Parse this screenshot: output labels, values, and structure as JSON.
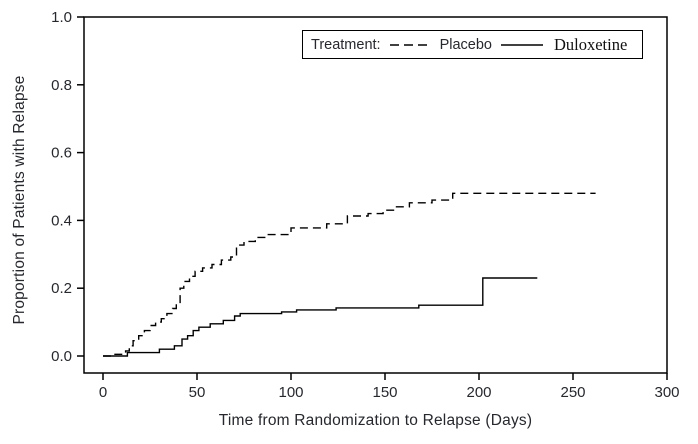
{
  "page": {
    "background_color": "#ffffff",
    "text_color": "#26282d",
    "line_color": "#000000"
  },
  "chart_data": {
    "type": "line",
    "subtype": "step-survival",
    "title": "",
    "xlabel": "Time from Randomization to Relapse (Days)",
    "ylabel": "Proportion of Patients with Relapse",
    "xlim": [
      0,
      300
    ],
    "ylim": [
      0.0,
      1.0
    ],
    "xticks": [
      "0",
      "50",
      "100",
      "150",
      "200",
      "250",
      "300"
    ],
    "yticks": [
      "0.0",
      "0.2",
      "0.4",
      "0.6",
      "0.8",
      "1.0"
    ],
    "grid": false,
    "legend": {
      "title": "Treatment:",
      "position": "top-right-inside",
      "entries": [
        {
          "label": "Placebo",
          "line_style": "dashed"
        },
        {
          "label": "Duloxetine",
          "line_style": "solid"
        }
      ]
    },
    "series": [
      {
        "name": "Placebo",
        "line_style": "dashed",
        "color": "#000000",
        "end_x": 262,
        "points": [
          [
            0,
            0.0
          ],
          [
            6,
            0.005
          ],
          [
            12,
            0.015
          ],
          [
            14,
            0.03
          ],
          [
            16,
            0.045
          ],
          [
            19,
            0.06
          ],
          [
            22,
            0.075
          ],
          [
            25,
            0.09
          ],
          [
            28,
            0.1
          ],
          [
            31,
            0.11
          ],
          [
            34,
            0.125
          ],
          [
            37,
            0.14
          ],
          [
            39,
            0.155
          ],
          [
            41,
            0.2
          ],
          [
            43,
            0.22
          ],
          [
            46,
            0.235
          ],
          [
            49,
            0.25
          ],
          [
            53,
            0.26
          ],
          [
            58,
            0.27
          ],
          [
            63,
            0.283
          ],
          [
            68,
            0.292
          ],
          [
            71,
            0.327
          ],
          [
            75,
            0.338
          ],
          [
            81,
            0.35
          ],
          [
            87,
            0.358
          ],
          [
            100,
            0.378
          ],
          [
            119,
            0.39
          ],
          [
            130,
            0.413
          ],
          [
            141,
            0.42
          ],
          [
            149,
            0.43
          ],
          [
            155,
            0.44
          ],
          [
            163,
            0.452
          ],
          [
            175,
            0.46
          ],
          [
            186,
            0.48
          ]
        ]
      },
      {
        "name": "Duloxetine",
        "line_style": "solid",
        "color": "#000000",
        "end_x": 231,
        "points": [
          [
            0,
            0.0
          ],
          [
            13,
            0.01
          ],
          [
            30,
            0.02
          ],
          [
            38,
            0.03
          ],
          [
            42,
            0.05
          ],
          [
            45,
            0.06
          ],
          [
            48,
            0.075
          ],
          [
            51,
            0.085
          ],
          [
            57,
            0.095
          ],
          [
            64,
            0.105
          ],
          [
            70,
            0.118
          ],
          [
            73,
            0.125
          ],
          [
            95,
            0.13
          ],
          [
            103,
            0.136
          ],
          [
            124,
            0.142
          ],
          [
            168,
            0.15
          ],
          [
            202,
            0.23
          ]
        ]
      }
    ]
  }
}
